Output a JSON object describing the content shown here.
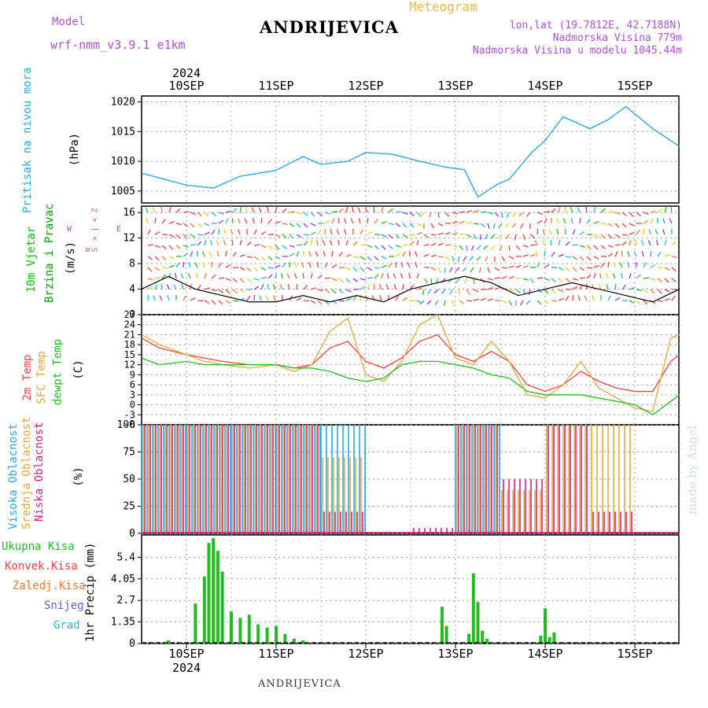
{
  "header": {
    "model_label": "Model",
    "model_name": "wrf-nmm_v3.9.1 e1km",
    "meteogram_label": "Meteogram",
    "station": "ANDRIJEVICA",
    "coords": "lon,lat (19.7812E, 42.7188N)",
    "elevation": "Nadmorska Visina 779m",
    "model_elevation": "Nadmorska Visina u modelu 1045.44m"
  },
  "footer": {
    "station": "ANDRIJEVICA",
    "credit": "made by Angel"
  },
  "time_axis": {
    "year": "2024",
    "day_labels": [
      "10SEP",
      "11SEP",
      "12SEP",
      "13SEP",
      "14SEP",
      "15SEP"
    ]
  },
  "panels": {
    "pressure": {
      "label": "Pritisak na nivou mora",
      "unit": "(hPa)",
      "ticks": [
        "1005",
        "1010",
        "1015",
        "1020"
      ],
      "color": "#2aa8e6"
    },
    "wind": {
      "label1": "10m Vjetar",
      "label2": "Brzina i Pravac",
      "unit": "(m/s)",
      "ticks": [
        "0",
        "4",
        "8",
        "12",
        "16"
      ],
      "compass": {
        "n": "Z",
        "s": "S",
        "w": "W",
        "e": "E",
        "left": "<",
        "right": ">",
        "center": "|",
        "bottom": "α"
      },
      "colors": [
        "#00c000",
        "#00a000"
      ]
    },
    "temperature": {
      "label1": "2m Temp",
      "label2": "SFC Temp",
      "label3": "dewpt Temp",
      "unit": "(C)",
      "ticks": [
        "-6",
        "-3",
        "0",
        "3",
        "6",
        "9",
        "12",
        "15",
        "18",
        "21",
        "24",
        "27"
      ],
      "colors": {
        "t2m": "#ee4040",
        "sfc": "#e8a838",
        "dew": "#22bb22"
      }
    },
    "clouds": {
      "label1": "Visoka Oblacnost",
      "label2": "Srednja Oblacnost",
      "label3": "Niska Oblacnost",
      "unit": "(%)",
      "ticks": [
        "0",
        "25",
        "50",
        "75",
        "100"
      ],
      "colors": {
        "high": "#2aa8e6",
        "mid": "#e8a838",
        "low": "#cc2288"
      }
    },
    "precip": {
      "labels": [
        "Ukupna Kisa",
        "Konvek.Kisa",
        "Zaledj.Kisa",
        "Snijeg",
        "Grad"
      ],
      "label_colors": [
        "#22bb22",
        "#ee4040",
        "#f07a2a",
        "#6060dd",
        "#22c0c0"
      ],
      "unit_label": "1hr Precip (mm)",
      "ticks": [
        "0",
        "1.35",
        "2.7",
        "4.05",
        "5.4"
      ]
    }
  },
  "chart_data": [
    {
      "type": "line",
      "title": "",
      "ylabel": "Pritisak na nivou mora (hPa)",
      "ylim": [
        1003,
        1021
      ],
      "x_days": [
        9.5,
        10.0,
        10.3,
        10.6,
        11.0,
        11.3,
        11.5,
        11.8,
        12.0,
        12.3,
        12.6,
        12.9,
        13.1,
        13.25,
        13.45,
        13.6,
        13.85,
        14.0,
        14.2,
        14.5,
        14.7,
        14.9,
        15.2,
        15.5
      ],
      "series": [
        {
          "values": [
            1008,
            1006,
            1005.5,
            1007.5,
            1008.5,
            1010.8,
            1009.5,
            1010,
            1011.5,
            1011.2,
            1010,
            1009,
            1008.6,
            1004,
            1006,
            1007,
            1011.5,
            1013.5,
            1017.5,
            1015.5,
            1017,
            1019.2,
            1015.5,
            1012.5
          ]
        }
      ]
    },
    {
      "type": "line",
      "title": "",
      "ylabel": "10m Vjetar Brzina i Pravac (m/s)",
      "ylim": [
        0,
        17
      ],
      "x_days": [
        9.5,
        9.8,
        10.1,
        10.4,
        10.7,
        11.0,
        11.3,
        11.6,
        11.9,
        12.2,
        12.5,
        12.8,
        13.1,
        13.4,
        13.7,
        14.0,
        14.3,
        14.6,
        14.9,
        15.2,
        15.5
      ],
      "series": [
        {
          "values": [
            4,
            6,
            4,
            3,
            2,
            2,
            3,
            2,
            3,
            2,
            4,
            5,
            6,
            5,
            3,
            4,
            5,
            4,
            3,
            2,
            4
          ]
        }
      ]
    },
    {
      "type": "line",
      "title": "",
      "ylabel": "Temp (C)",
      "ylim": [
        -6,
        27
      ],
      "x_days": [
        9.5,
        9.7,
        10.0,
        10.2,
        10.4,
        10.7,
        11.0,
        11.2,
        11.4,
        11.6,
        11.8,
        12.0,
        12.2,
        12.4,
        12.6,
        12.8,
        13.0,
        13.2,
        13.4,
        13.6,
        13.8,
        14.0,
        14.2,
        14.4,
        14.6,
        14.8,
        15.0,
        15.2,
        15.4,
        15.5
      ],
      "series": [
        {
          "name": "2m Temp",
          "values": [
            20,
            17,
            15,
            14,
            13,
            12,
            12,
            11,
            12,
            17,
            19,
            13,
            11,
            14,
            19,
            21,
            15,
            13,
            16,
            13,
            6,
            4,
            6,
            10,
            7,
            5,
            4,
            4,
            13,
            15
          ]
        },
        {
          "name": "SFC Temp",
          "values": [
            21,
            18,
            15,
            13,
            12,
            11,
            12,
            10,
            12,
            22,
            26,
            9,
            7,
            13,
            24,
            27,
            14,
            12,
            19,
            13,
            3,
            2,
            6,
            13,
            5,
            2,
            -1,
            -2,
            20,
            21
          ]
        },
        {
          "name": "dewpt Temp",
          "values": [
            14,
            12,
            13,
            12,
            12,
            12,
            12,
            11,
            11,
            10,
            8,
            7,
            8,
            12,
            13,
            13,
            12,
            11,
            9,
            8,
            4,
            3,
            3,
            3,
            2,
            1,
            0,
            -3,
            1,
            3
          ]
        }
      ]
    },
    {
      "type": "bar",
      "title": "",
      "ylabel": "Oblacnost (%)",
      "ylim": [
        0,
        100
      ],
      "x_days": [
        9.5,
        10.0,
        10.5,
        11.0,
        11.5,
        12.0,
        12.5,
        13.0,
        13.5,
        14.0,
        14.5,
        15.0,
        15.5
      ],
      "series": [
        {
          "name": "Visoka Oblacnost",
          "values": [
            100,
            100,
            100,
            100,
            100,
            0,
            0,
            100,
            0,
            0,
            0,
            0,
            40
          ]
        },
        {
          "name": "Srednja Oblacnost",
          "values": [
            100,
            100,
            100,
            100,
            70,
            0,
            0,
            100,
            40,
            100,
            100,
            0,
            100
          ]
        },
        {
          "name": "Niska Oblacnost",
          "values": [
            100,
            100,
            100,
            100,
            20,
            0,
            5,
            100,
            50,
            100,
            20,
            0,
            100
          ]
        }
      ]
    },
    {
      "type": "bar",
      "title": "",
      "ylabel": "1hr Precip (mm)",
      "ylim": [
        0,
        6.8
      ],
      "x_days": [
        9.8,
        10.1,
        10.2,
        10.25,
        10.3,
        10.35,
        10.4,
        10.5,
        10.6,
        10.7,
        10.8,
        10.9,
        11.0,
        11.1,
        11.2,
        11.3,
        12.85,
        12.9,
        13.15,
        13.2,
        13.25,
        13.3,
        13.35,
        13.95,
        14.0,
        14.05,
        14.1
      ],
      "series": [
        {
          "name": "Ukupna Kisa",
          "values": [
            0.2,
            2.5,
            4.2,
            6.3,
            6.6,
            5.8,
            4.5,
            2.0,
            1.6,
            1.8,
            1.2,
            1.0,
            1.1,
            0.6,
            0.3,
            0.2,
            2.3,
            1.1,
            0.6,
            4.4,
            2.6,
            0.8,
            0.3,
            0.5,
            2.2,
            0.4,
            0.7
          ]
        }
      ]
    }
  ]
}
